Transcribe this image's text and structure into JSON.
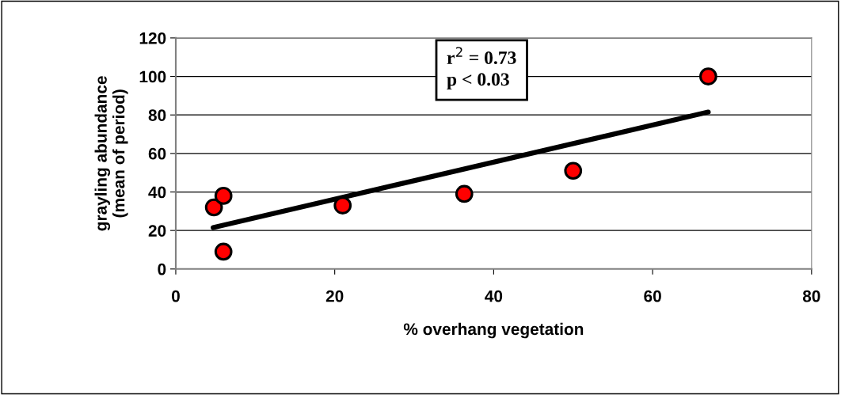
{
  "chart_data": {
    "type": "scatter",
    "xlabel": "% overhang vegetation",
    "ylabel": "grayling abundance\n(mean of period)",
    "series": [
      {
        "color": "#ff0000",
        "x": [
          4.8,
          6,
          6,
          21,
          36.3,
          50,
          67
        ],
        "values": [
          32,
          38,
          9,
          33,
          39,
          51,
          100
        ],
        "marker": "circle"
      },
      {
        "type": "line",
        "color": "#000000",
        "x": [
          4.7,
          67
        ],
        "values": [
          21.5,
          81.5
        ],
        "marker": "none",
        "line_style": "solid"
      }
    ],
    "annotations": [
      "r$^{2}$ = 0.73\np < 0.03"
    ],
    "xlim": [
      0,
      80
    ],
    "xticks": [
      0,
      20,
      40,
      60,
      80
    ],
    "ylim": [
      0,
      120
    ],
    "yticks": [
      0,
      20,
      40,
      60,
      80,
      100,
      120
    ],
    "grid": "y",
    "legend": false
  }
}
